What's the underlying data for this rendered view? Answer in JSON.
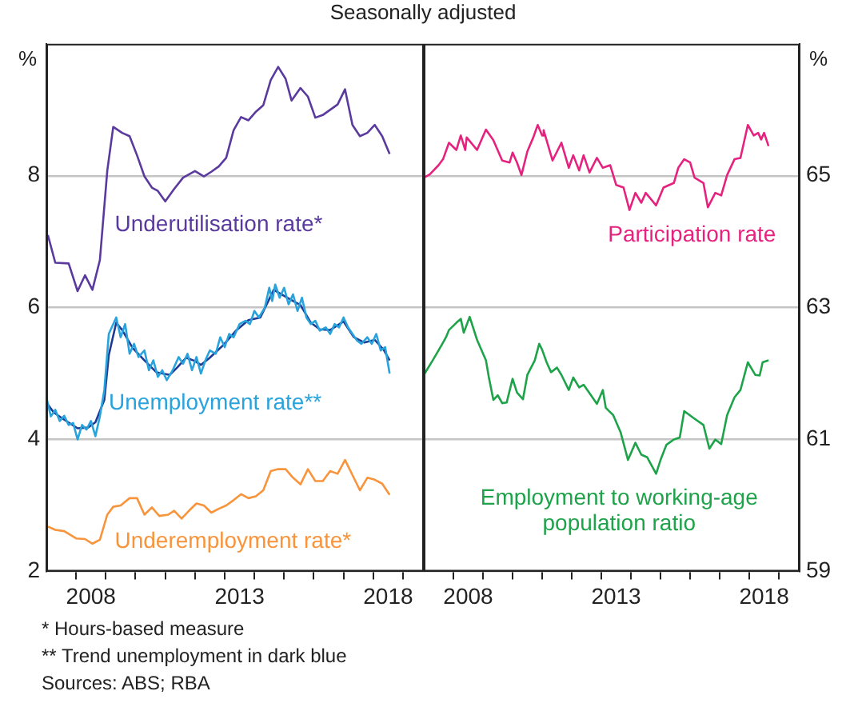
{
  "chart_data": [
    {
      "type": "line",
      "title": "Seasonally adjusted",
      "ylabel": "%",
      "xlim": [
        2007,
        2019.7
      ],
      "ylim": [
        2,
        10
      ],
      "yticks": [
        2,
        4,
        6,
        8
      ],
      "xticks": [
        {
          "value": 2008,
          "label": null
        },
        {
          "value": 2008.5,
          "label": "2008"
        },
        {
          "value": 2009,
          "label": null
        },
        {
          "value": 2010,
          "label": null
        },
        {
          "value": 2011,
          "label": null
        },
        {
          "value": 2012,
          "label": null
        },
        {
          "value": 2013,
          "label": null
        },
        {
          "value": 2013.5,
          "label": "2013"
        },
        {
          "value": 2014,
          "label": null
        },
        {
          "value": 2015,
          "label": null
        },
        {
          "value": 2016,
          "label": null
        },
        {
          "value": 2017,
          "label": null
        },
        {
          "value": 2018,
          "label": null
        },
        {
          "value": 2018.5,
          "label": "2018"
        },
        {
          "value": 2019,
          "label": null
        }
      ],
      "grid": "y",
      "legend": false,
      "marker": "none",
      "line_style": "solid",
      "annotations": [
        "* Hours-based measure",
        "** Trend unemployment in dark blue",
        "Sources: ABS; RBA"
      ],
      "series": [
        {
          "name": "Underutilisation rate*",
          "color": "#5b3a9e",
          "x": [
            2007.05,
            2007.3,
            2007.75,
            2008.05,
            2008.3,
            2008.55,
            2008.8,
            2009.05,
            2009.25,
            2009.55,
            2009.8,
            2010.05,
            2010.3,
            2010.55,
            2010.75,
            2011.0,
            2011.3,
            2011.6,
            2012.0,
            2012.3,
            2012.55,
            2012.8,
            2013.05,
            2013.3,
            2013.55,
            2013.8,
            2014.05,
            2014.3,
            2014.55,
            2014.8,
            2015.05,
            2015.25,
            2015.55,
            2015.8,
            2016.05,
            2016.3,
            2016.8,
            2017.05,
            2017.3,
            2017.55,
            2017.8,
            2018.05,
            2018.3,
            2018.55
          ],
          "values": [
            7.1,
            6.68,
            6.67,
            6.25,
            6.49,
            6.27,
            6.72,
            8.08,
            8.74,
            8.65,
            8.6,
            8.31,
            7.99,
            7.82,
            7.77,
            7.61,
            7.8,
            7.97,
            8.07,
            7.99,
            8.06,
            8.14,
            8.27,
            8.69,
            8.89,
            8.84,
            8.97,
            9.07,
            9.45,
            9.65,
            9.47,
            9.14,
            9.33,
            9.2,
            8.88,
            8.92,
            9.08,
            9.31,
            8.77,
            8.6,
            8.65,
            8.77,
            8.6,
            8.33
          ]
        },
        {
          "name": "Unemployment rate**",
          "color": "#29a3dc",
          "x": [
            2007.0,
            2007.15,
            2007.3,
            2007.45,
            2007.6,
            2007.75,
            2007.9,
            2008.05,
            2008.2,
            2008.35,
            2008.5,
            2008.65,
            2008.8,
            2008.95,
            2009.1,
            2009.25,
            2009.35,
            2009.5,
            2009.65,
            2009.8,
            2009.95,
            2010.1,
            2010.3,
            2010.45,
            2010.6,
            2010.75,
            2010.9,
            2011.05,
            2011.25,
            2011.45,
            2011.6,
            2011.75,
            2011.9,
            2012.05,
            2012.2,
            2012.35,
            2012.5,
            2012.7,
            2012.85,
            2013.0,
            2013.15,
            2013.3,
            2013.5,
            2013.7,
            2013.85,
            2014.0,
            2014.15,
            2014.35,
            2014.5,
            2014.6,
            2014.7,
            2014.85,
            2015.0,
            2015.15,
            2015.3,
            2015.45,
            2015.6,
            2015.75,
            2015.9,
            2016.05,
            2016.2,
            2016.4,
            2016.55,
            2016.7,
            2016.85,
            2017.0,
            2017.15,
            2017.3,
            2017.45,
            2017.6,
            2017.8,
            2017.95,
            2018.1,
            2018.25,
            2018.4,
            2018.55
          ],
          "values": [
            4.64,
            4.35,
            4.45,
            4.28,
            4.36,
            4.22,
            4.25,
            4.0,
            4.22,
            4.15,
            4.28,
            4.05,
            4.35,
            4.75,
            5.6,
            5.75,
            5.85,
            5.55,
            5.75,
            5.3,
            5.45,
            5.25,
            5.35,
            5.05,
            5.2,
            4.95,
            5.05,
            4.9,
            5.05,
            5.25,
            5.15,
            5.3,
            5.05,
            5.25,
            5.0,
            5.2,
            5.35,
            5.3,
            5.55,
            5.4,
            5.6,
            5.55,
            5.75,
            5.8,
            5.75,
            5.95,
            5.85,
            6.0,
            6.3,
            6.1,
            6.35,
            6.15,
            6.3,
            6.05,
            6.2,
            5.95,
            6.15,
            5.85,
            5.75,
            5.8,
            5.65,
            5.7,
            5.6,
            5.75,
            5.7,
            5.85,
            5.7,
            5.6,
            5.5,
            5.45,
            5.55,
            5.45,
            5.6,
            5.35,
            5.4,
            5.0
          ]
        },
        {
          "color": "#1f3a93",
          "x": [
            2007.0,
            2007.25,
            2007.6,
            2008.05,
            2008.4,
            2008.65,
            2008.95,
            2009.1,
            2009.35,
            2009.55,
            2009.9,
            2010.3,
            2010.7,
            2011.15,
            2011.4,
            2011.7,
            2012.0,
            2012.2,
            2012.5,
            2012.95,
            2013.4,
            2013.8,
            2014.2,
            2014.65,
            2014.95,
            2015.3,
            2015.55,
            2015.9,
            2016.2,
            2016.55,
            2017.0,
            2017.35,
            2017.7,
            2018.05,
            2018.35,
            2018.55
          ],
          "values": [
            4.56,
            4.41,
            4.3,
            4.17,
            4.18,
            4.26,
            4.6,
            5.28,
            5.77,
            5.66,
            5.39,
            5.2,
            5.02,
            4.98,
            5.09,
            5.24,
            5.19,
            5.13,
            5.24,
            5.43,
            5.66,
            5.81,
            5.85,
            6.27,
            6.19,
            6.1,
            6.04,
            5.77,
            5.67,
            5.66,
            5.79,
            5.55,
            5.47,
            5.51,
            5.36,
            5.2
          ]
        },
        {
          "name": "Underemployment rate*",
          "color": "#f7943c",
          "x": [
            2007.05,
            2007.3,
            2007.6,
            2008.0,
            2008.3,
            2008.55,
            2008.8,
            2009.05,
            2009.25,
            2009.5,
            2009.8,
            2010.05,
            2010.3,
            2010.55,
            2010.8,
            2011.1,
            2011.3,
            2011.55,
            2011.8,
            2012.05,
            2012.3,
            2012.55,
            2012.8,
            2013.05,
            2013.3,
            2013.55,
            2013.8,
            2014.05,
            2014.3,
            2014.55,
            2014.8,
            2015.05,
            2015.3,
            2015.55,
            2015.8,
            2016.05,
            2016.3,
            2016.55,
            2016.8,
            2017.05,
            2017.3,
            2017.55,
            2017.8,
            2018.05,
            2018.3,
            2018.55
          ],
          "values": [
            2.68,
            2.63,
            2.61,
            2.5,
            2.49,
            2.42,
            2.48,
            2.86,
            2.98,
            3.0,
            3.11,
            3.11,
            2.86,
            2.97,
            2.84,
            2.86,
            2.92,
            2.8,
            2.92,
            3.03,
            3.0,
            2.89,
            2.95,
            3.0,
            3.08,
            3.17,
            3.11,
            3.14,
            3.23,
            3.52,
            3.55,
            3.55,
            3.42,
            3.32,
            3.55,
            3.37,
            3.37,
            3.52,
            3.48,
            3.69,
            3.46,
            3.23,
            3.42,
            3.39,
            3.33,
            3.16
          ]
        }
      ]
    },
    {
      "type": "line",
      "ylabel": "%",
      "xlim": [
        2007,
        2019.7
      ],
      "ylim": [
        59,
        67
      ],
      "yticks": [
        59,
        61,
        63,
        65
      ],
      "xticks": [
        {
          "value": 2008,
          "label": null
        },
        {
          "value": 2008.5,
          "label": "2008"
        },
        {
          "value": 2009,
          "label": null
        },
        {
          "value": 2010,
          "label": null
        },
        {
          "value": 2011,
          "label": null
        },
        {
          "value": 2012,
          "label": null
        },
        {
          "value": 2013,
          "label": null
        },
        {
          "value": 2013.5,
          "label": "2013"
        },
        {
          "value": 2014,
          "label": null
        },
        {
          "value": 2015,
          "label": null
        },
        {
          "value": 2016,
          "label": null
        },
        {
          "value": 2017,
          "label": null
        },
        {
          "value": 2018,
          "label": null
        },
        {
          "value": 2018.5,
          "label": "2018"
        },
        {
          "value": 2019,
          "label": null
        }
      ],
      "grid": "y",
      "legend": false,
      "marker": "none",
      "line_style": "solid",
      "series": [
        {
          "name": "Participation rate",
          "color": "#e6227f",
          "x": [
            2007.0,
            2007.2,
            2007.5,
            2007.65,
            2007.85,
            2008.1,
            2008.25,
            2008.4,
            2008.45,
            2008.8,
            2009.1,
            2009.35,
            2009.65,
            2009.9,
            2010.0,
            2010.15,
            2010.3,
            2010.5,
            2010.7,
            2010.85,
            2011.0,
            2011.05,
            2011.35,
            2011.65,
            2011.9,
            2012.05,
            2012.25,
            2012.4,
            2012.6,
            2012.85,
            2013.05,
            2013.3,
            2013.5,
            2013.75,
            2013.95,
            2014.15,
            2014.35,
            2014.5,
            2014.85,
            2015.1,
            2015.45,
            2015.6,
            2015.8,
            2016.0,
            2016.15,
            2016.45,
            2016.6,
            2016.85,
            2017.05,
            2017.25,
            2017.5,
            2017.7,
            2017.95,
            2018.15,
            2018.3,
            2018.4,
            2018.5,
            2018.65
          ],
          "values": [
            64.97,
            65.02,
            65.16,
            65.25,
            65.5,
            65.39,
            65.61,
            65.39,
            65.58,
            65.39,
            65.7,
            65.54,
            65.23,
            65.2,
            65.35,
            65.2,
            65.01,
            65.37,
            65.58,
            65.77,
            65.61,
            65.69,
            65.23,
            65.5,
            65.12,
            65.31,
            65.08,
            65.31,
            65.05,
            65.27,
            65.12,
            65.16,
            64.86,
            64.82,
            64.48,
            64.74,
            64.59,
            64.74,
            64.55,
            64.82,
            64.89,
            65.12,
            65.25,
            65.2,
            64.97,
            64.89,
            64.52,
            64.74,
            64.7,
            65.01,
            65.25,
            65.27,
            65.77,
            65.61,
            65.65,
            65.55,
            65.65,
            65.45
          ]
        },
        {
          "name": "Employment to working-age population ratio",
          "color": "#1fa34a",
          "x": [
            2007.0,
            2007.3,
            2007.6,
            2007.75,
            2007.85,
            2008.1,
            2008.25,
            2008.35,
            2008.55,
            2008.8,
            2009.1,
            2009.2,
            2009.35,
            2009.5,
            2009.65,
            2009.8,
            2010.0,
            2010.15,
            2010.35,
            2010.5,
            2010.75,
            2010.9,
            2011.0,
            2011.15,
            2011.3,
            2011.5,
            2011.65,
            2011.9,
            2012.05,
            2012.25,
            2012.4,
            2012.65,
            2012.85,
            2013.05,
            2013.15,
            2013.4,
            2013.65,
            2013.9,
            2014.15,
            2014.35,
            2014.55,
            2014.85,
            2015.0,
            2015.2,
            2015.45,
            2015.65,
            2015.8,
            2016.1,
            2016.45,
            2016.65,
            2016.85,
            2017.05,
            2017.25,
            2017.5,
            2017.7,
            2017.95,
            2018.2,
            2018.35,
            2018.45,
            2018.65
          ],
          "values": [
            61.98,
            62.2,
            62.43,
            62.55,
            62.66,
            62.77,
            62.83,
            62.62,
            62.86,
            62.51,
            62.2,
            61.94,
            61.6,
            61.67,
            61.55,
            61.56,
            61.92,
            61.71,
            61.61,
            61.98,
            62.2,
            62.45,
            62.36,
            62.17,
            62.02,
            62.09,
            61.98,
            61.75,
            61.94,
            61.79,
            61.83,
            61.67,
            61.54,
            61.75,
            61.48,
            61.37,
            61.11,
            60.69,
            60.95,
            60.77,
            60.73,
            60.48,
            60.69,
            60.92,
            61.0,
            61.03,
            61.43,
            61.33,
            61.22,
            60.86,
            61.0,
            60.93,
            61.37,
            61.64,
            61.75,
            62.17,
            61.98,
            61.97,
            62.17,
            62.2
          ]
        }
      ]
    }
  ]
}
